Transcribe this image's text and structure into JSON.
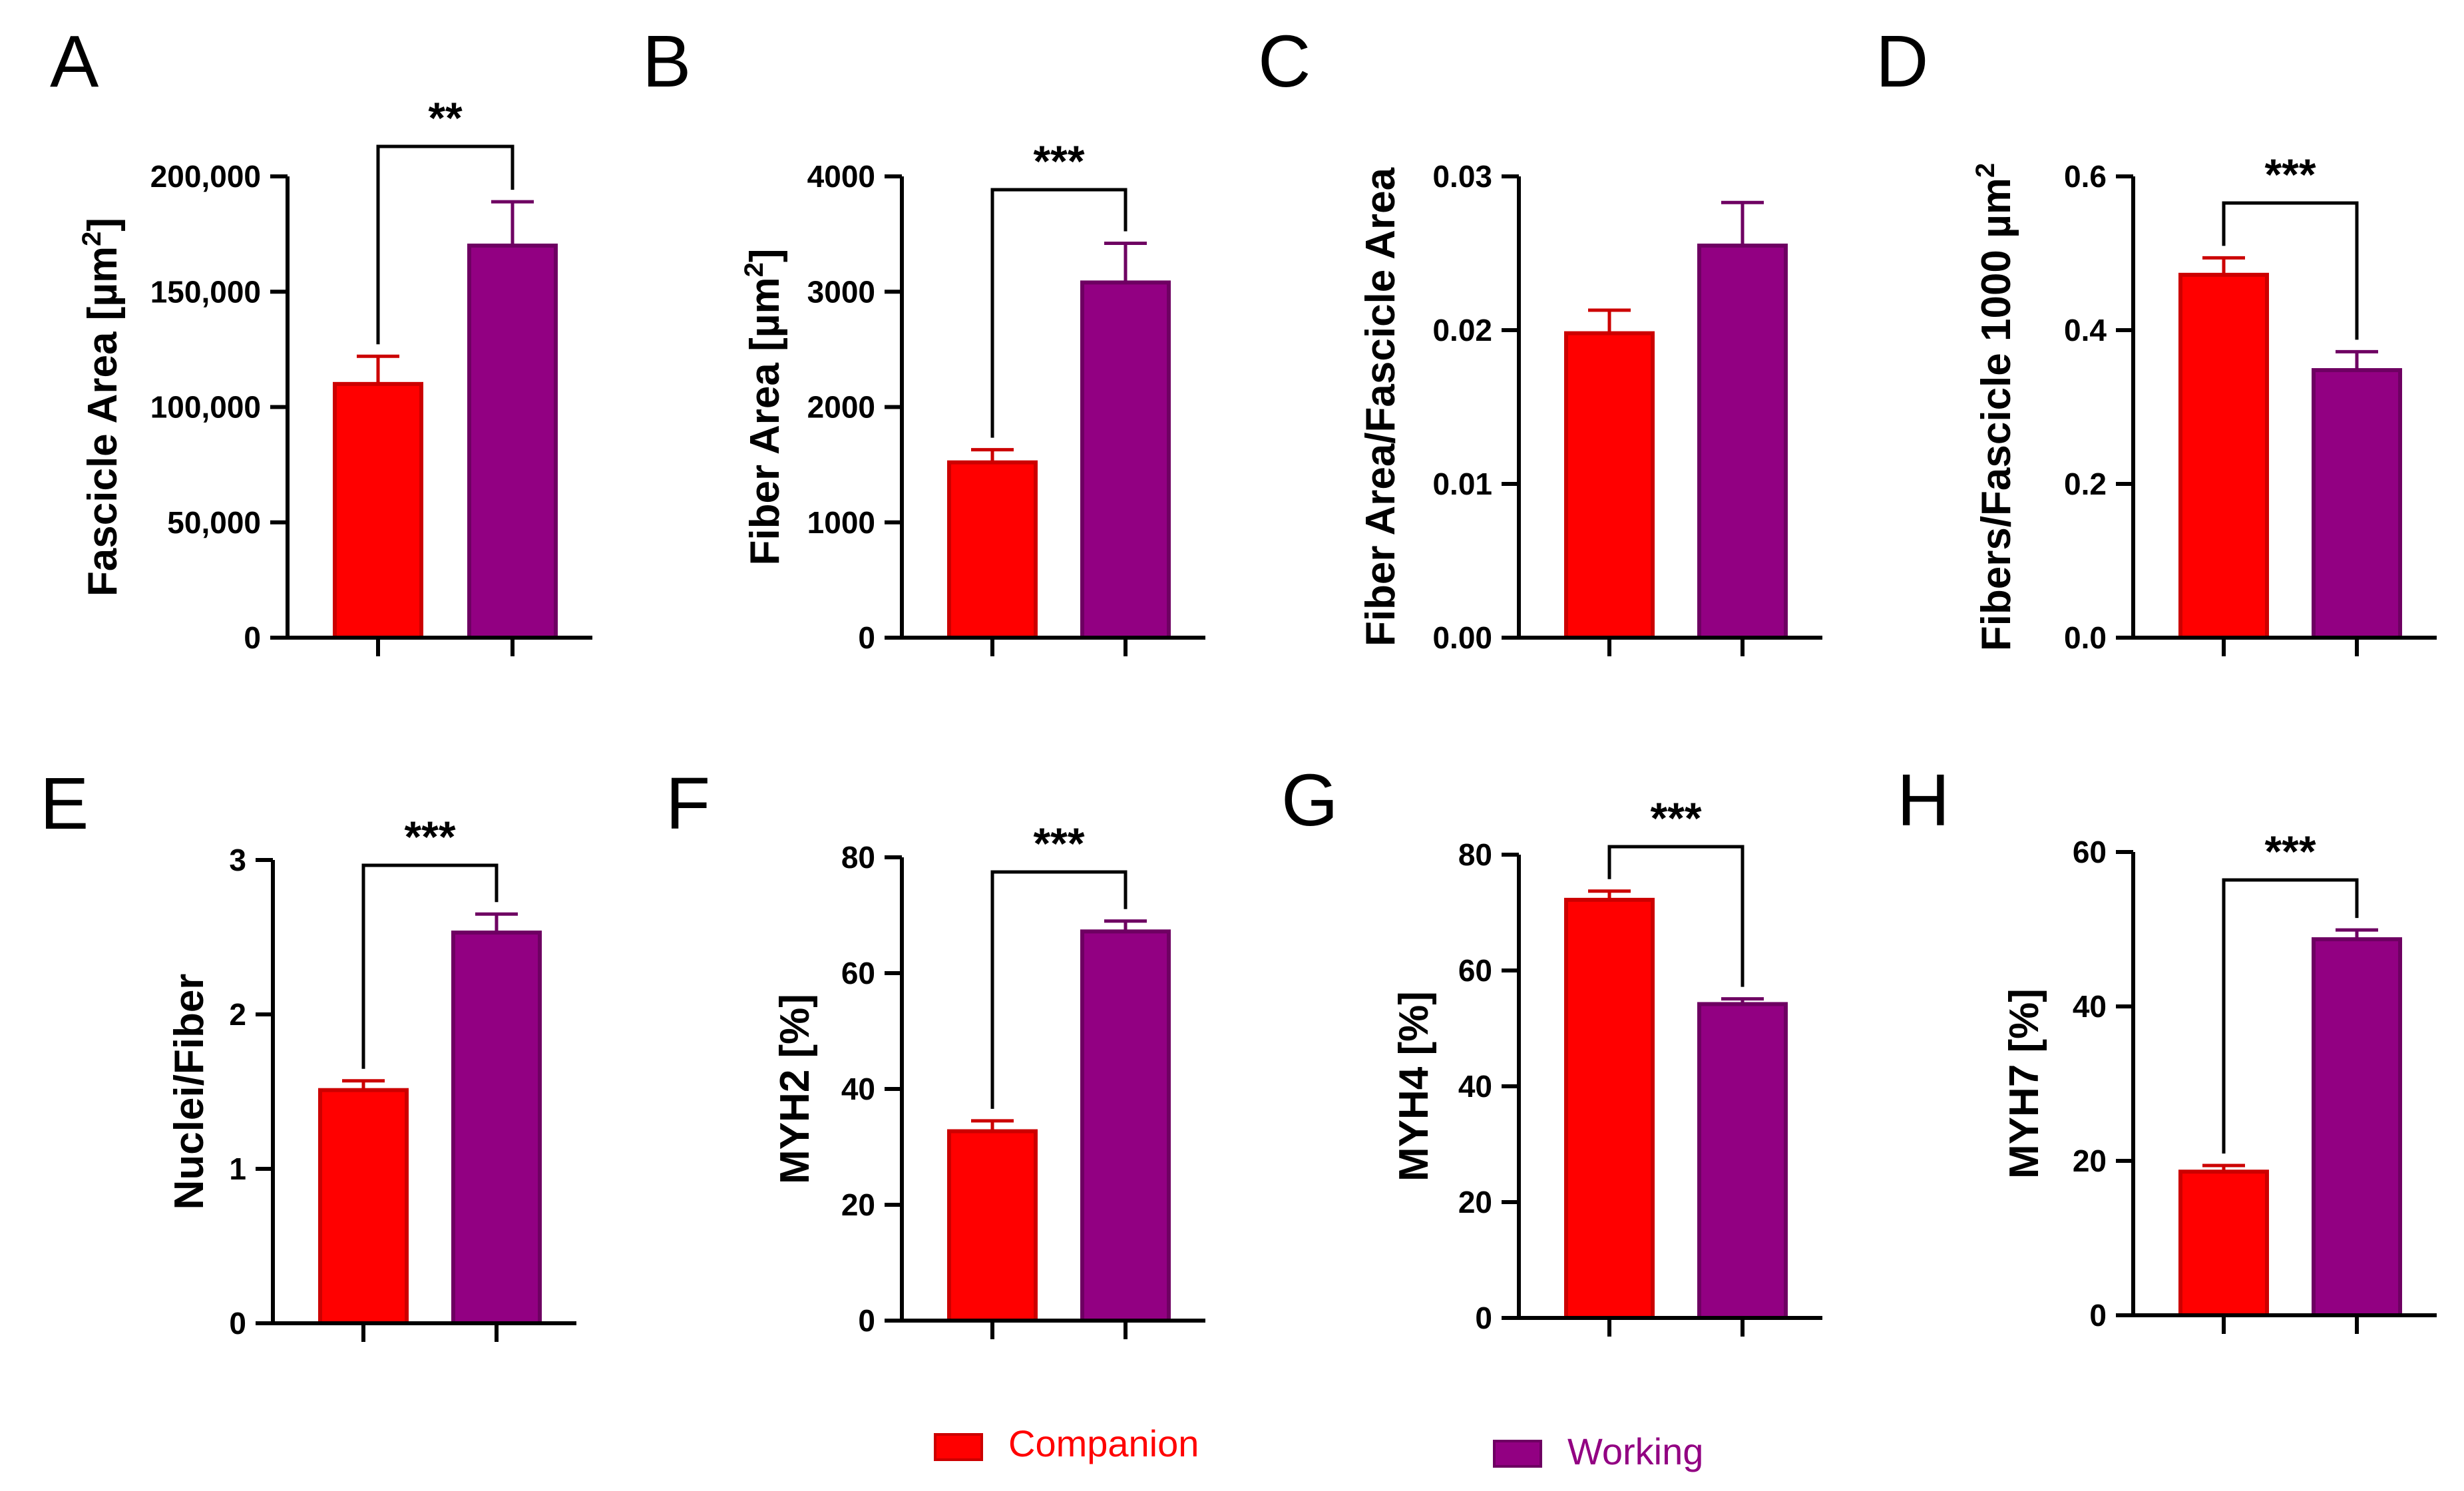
{
  "chart_data": [
    {
      "panel": "A",
      "type": "bar",
      "categories": [
        "Companion",
        "Working"
      ],
      "values": [
        110000,
        170000
      ],
      "errors": [
        12000,
        19000
      ],
      "ylabel": "Fascicle Area [µm²]",
      "ylabel_main": "Fascicle Area [µm",
      "ylabel_sup": "2",
      "ylabel_end": "]",
      "ylim": [
        0,
        200000
      ],
      "ticks": [
        0,
        50000,
        100000,
        150000,
        200000
      ],
      "tick_labels": [
        "0",
        "50,000",
        "100,000",
        "150,000",
        "200,000"
      ],
      "significance": "**"
    },
    {
      "panel": "B",
      "type": "bar",
      "categories": [
        "Companion",
        "Working"
      ],
      "values": [
        1520,
        3080
      ],
      "errors": [
        110,
        340
      ],
      "ylabel": "Fiber Area [µm²]",
      "ylabel_main": "Fiber Area [µm",
      "ylabel_sup": "2",
      "ylabel_end": "]",
      "ylim": [
        0,
        4000
      ],
      "ticks": [
        0,
        1000,
        2000,
        3000,
        4000
      ],
      "tick_labels": [
        "0",
        "1000",
        "2000",
        "3000",
        "4000"
      ],
      "significance": "***"
    },
    {
      "panel": "C",
      "type": "bar",
      "categories": [
        "Companion",
        "Working"
      ],
      "values": [
        0.0198,
        0.0255
      ],
      "errors": [
        0.0015,
        0.0028
      ],
      "ylabel": "Fiber Area/Fascicle Area",
      "ylabel_main": "Fiber Area/Fascicle Area",
      "ylabel_sup": "",
      "ylabel_end": "",
      "ylim": [
        0,
        0.03
      ],
      "ticks": [
        0,
        0.01,
        0.02,
        0.03
      ],
      "tick_labels": [
        "0.00",
        "0.01",
        "0.02",
        "0.03"
      ],
      "significance": ""
    },
    {
      "panel": "D",
      "type": "bar",
      "categories": [
        "Companion",
        "Working"
      ],
      "values": [
        0.472,
        0.348
      ],
      "errors": [
        0.022,
        0.024
      ],
      "ylabel": "Fibers/Fascicle 1000 µm²",
      "ylabel_main": "Fibers/Fascicle 1000 µm",
      "ylabel_sup": "2",
      "ylabel_end": "",
      "ylim": [
        0,
        0.6
      ],
      "ticks": [
        0,
        0.2,
        0.4,
        0.6
      ],
      "tick_labels": [
        "0.0",
        "0.2",
        "0.4",
        "0.6"
      ],
      "significance": "***"
    },
    {
      "panel": "E",
      "type": "bar",
      "categories": [
        "Companion",
        "Working"
      ],
      "values": [
        1.51,
        2.53
      ],
      "errors": [
        0.06,
        0.12
      ],
      "ylabel": "Nuclei/Fiber",
      "ylabel_main": "Nuclei/Fiber",
      "ylabel_sup": "",
      "ylabel_end": "",
      "ylim": [
        0,
        3
      ],
      "ticks": [
        0,
        1,
        2,
        3
      ],
      "tick_labels": [
        "0",
        "1",
        "2",
        "3"
      ],
      "significance": "***"
    },
    {
      "panel": "F",
      "type": "bar",
      "categories": [
        "Companion",
        "Working"
      ],
      "values": [
        32.7,
        67.2
      ],
      "errors": [
        1.8,
        1.8
      ],
      "ylabel": "MYH2 [%]",
      "ylabel_main": "MYH2 [%]",
      "ylabel_sup": "",
      "ylabel_end": "",
      "ylim": [
        0,
        80
      ],
      "ticks": [
        0,
        20,
        40,
        60,
        80
      ],
      "tick_labels": [
        "0",
        "20",
        "40",
        "60",
        "80"
      ],
      "significance": "***"
    },
    {
      "panel": "G",
      "type": "bar",
      "categories": [
        "Companion",
        "Working"
      ],
      "values": [
        72.2,
        54.2
      ],
      "errors": [
        1.5,
        0.9
      ],
      "ylabel": "MYH4 [%]",
      "ylabel_main": "MYH4 [%]",
      "ylabel_sup": "",
      "ylabel_end": "",
      "ylim": [
        0,
        80
      ],
      "ticks": [
        0,
        20,
        40,
        60,
        80
      ],
      "tick_labels": [
        "0",
        "20",
        "40",
        "60",
        "80"
      ],
      "significance": "***"
    },
    {
      "panel": "H",
      "type": "bar",
      "categories": [
        "Companion",
        "Working"
      ],
      "values": [
        18.6,
        48.7
      ],
      "errors": [
        0.8,
        1.2
      ],
      "ylabel": "MYH7 [%]",
      "ylabel_main": "MYH7 [%]",
      "ylabel_sup": "",
      "ylabel_end": "",
      "ylim": [
        0,
        60
      ],
      "ticks": [
        0,
        20,
        40,
        60
      ],
      "tick_labels": [
        "0",
        "20",
        "40",
        "60"
      ],
      "significance": "***"
    }
  ],
  "legend": {
    "items": [
      {
        "label": "Companion",
        "color": "#ff0000",
        "edge": "#cc0000"
      },
      {
        "label": "Working",
        "color": "#920082",
        "edge": "#6e0062"
      }
    ]
  }
}
